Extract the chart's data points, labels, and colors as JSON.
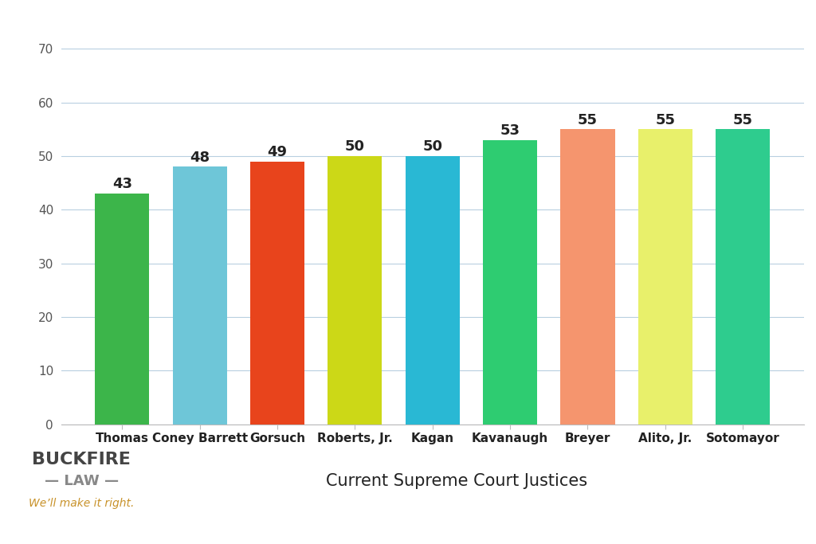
{
  "categories": [
    "Thomas",
    "Coney Barrett",
    "Gorsuch",
    "Roberts, Jr.",
    "Kagan",
    "Kavanaugh",
    "Breyer",
    "Alito, Jr.",
    "Sotomayor"
  ],
  "values": [
    43,
    48,
    49,
    50,
    50,
    53,
    55,
    55,
    55
  ],
  "bar_colors": [
    "#3cb54a",
    "#6ec6d8",
    "#e8441c",
    "#ccd817",
    "#29b8d4",
    "#2ecc71",
    "#f5956e",
    "#e8f06b",
    "#2ecc8e"
  ],
  "title": "Current Supreme Court Justices",
  "title_fontsize": 15,
  "yticks": [
    0,
    10,
    20,
    30,
    40,
    50,
    60,
    70
  ],
  "ylim": [
    0,
    73
  ],
  "background_color": "#ffffff",
  "grid_color": "#b8cfe0",
  "tick_label_fontsize": 11,
  "value_label_fontsize": 13,
  "buckfire_text1": "BUCKFIRE",
  "buckfire_text2": "— LAW —",
  "buckfire_text3": "We’ll make it right.",
  "buckfire_color1": "#444444",
  "buckfire_color2": "#888888",
  "buckfire_color3": "#c8922a"
}
